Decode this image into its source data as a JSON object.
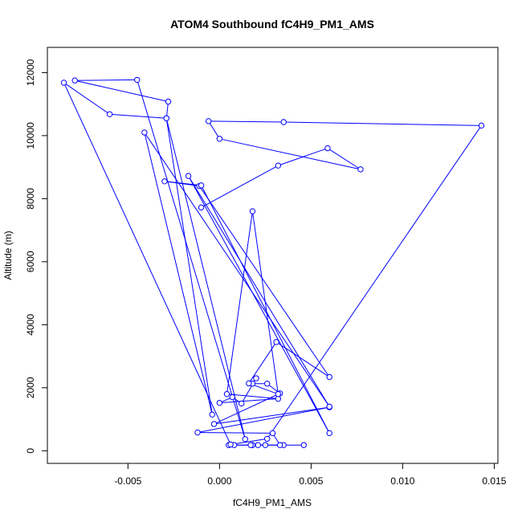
{
  "chart_data": {
    "type": "line",
    "title": "ATOM4 Southbound fC4H9_PM1_AMS",
    "xlabel": "fC4H9_PM1_AMS",
    "ylabel": "Altitude (m)",
    "xlim": [
      -0.0094,
      0.0152
    ],
    "ylim": [
      -400,
      12800
    ],
    "x_ticks": [
      -0.005,
      0.0,
      0.005,
      0.01,
      0.015
    ],
    "x_tick_labels": [
      "-0.005",
      "0.000",
      "0.005",
      "0.010",
      "0.015"
    ],
    "y_ticks": [
      0,
      2000,
      4000,
      6000,
      8000,
      10000,
      12000
    ],
    "y_tick_labels": [
      "0",
      "2000",
      "4000",
      "6000",
      "8000",
      "10000",
      "12000"
    ],
    "grid": false,
    "series": [
      {
        "color": "#0000ff",
        "marker": "open-circle",
        "points": [
          [
            0.0046,
            180
          ],
          [
            0.0035,
            180
          ],
          [
            0.0025,
            180
          ],
          [
            0.0021,
            180
          ],
          [
            0.0018,
            180
          ],
          [
            0.0008,
            180
          ],
          [
            0.0005,
            180
          ],
          [
            0.0017,
            180
          ],
          [
            0.0033,
            180
          ],
          [
            0.0029,
            560
          ],
          [
            -0.0012,
            580
          ],
          [
            0.006,
            1380
          ],
          [
            -0.0003,
            850
          ],
          [
            0.0033,
            1820
          ],
          [
            0.0026,
            2130
          ],
          [
            0.0018,
            2130
          ],
          [
            0.002,
            2300
          ],
          [
            0.0012,
            1500
          ],
          [
            0.0007,
            1700
          ],
          [
            0.0,
            1520
          ],
          [
            0.0032,
            1650
          ],
          [
            0.0004,
            1800
          ],
          [
            0.0018,
            7600
          ],
          [
            0.0032,
            1800
          ],
          [
            0.0016,
            2140
          ],
          [
            0.0031,
            3450
          ],
          [
            0.006,
            2340
          ],
          [
            -0.0011,
            8400
          ],
          [
            -0.003,
            8550
          ],
          [
            -0.001,
            8420
          ],
          [
            0.006,
            560
          ],
          [
            -0.0017,
            8720
          ],
          [
            0.006,
            1400
          ],
          [
            -0.0041,
            10100
          ],
          [
            -0.0004,
            1150
          ],
          [
            -0.0029,
            10550
          ],
          [
            0.0014,
            370
          ],
          [
            -0.0045,
            11770
          ],
          [
            -0.0079,
            11750
          ],
          [
            -0.0028,
            11080
          ],
          [
            -0.0029,
            10550
          ],
          [
            -0.006,
            10680
          ],
          [
            -0.0085,
            11680
          ],
          [
            0.0006,
            200
          ],
          [
            0.0026,
            380
          ],
          [
            0.0143,
            10320
          ],
          [
            0.0035,
            10430
          ],
          [
            -0.0006,
            10460
          ],
          [
            0.0,
            9900
          ],
          [
            0.0077,
            8930
          ],
          [
            0.0059,
            9600
          ],
          [
            0.0032,
            9050
          ],
          [
            -0.001,
            7720
          ]
        ]
      }
    ]
  }
}
